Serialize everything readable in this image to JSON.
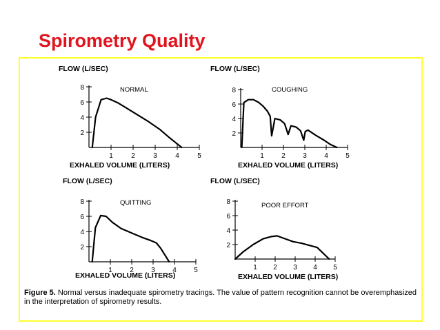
{
  "slide": {
    "title": "Spirometry Quality"
  },
  "figure": {
    "caption_label": "Figure 5.",
    "caption_text": "Normal versus inadequate spirometry tracings. The value of pattern recognition cannot be overemphasized in the interpretation of spirometry results."
  },
  "colors": {
    "title": "#e0141e",
    "frame": "#ffff2a",
    "ink": "#000000"
  },
  "chart_data": [
    {
      "type": "line",
      "title": "NORMAL",
      "xlabel": "EXHALED VOLUME (LITERS)",
      "ylabel": "FLOW (L/SEC)",
      "xlim": [
        0,
        5
      ],
      "ylim": [
        0,
        8
      ],
      "xticks": [
        1,
        2,
        3,
        4,
        5
      ],
      "yticks": [
        2,
        4,
        6,
        8
      ],
      "x": [
        0.15,
        0.3,
        0.55,
        0.8,
        1.0,
        1.3,
        1.7,
        2.2,
        2.7,
        3.2,
        3.6,
        3.9,
        4.2
      ],
      "y": [
        0,
        4.0,
        6.3,
        6.5,
        6.3,
        5.9,
        5.2,
        4.3,
        3.4,
        2.4,
        1.4,
        0.7,
        0
      ]
    },
    {
      "type": "line",
      "title": "COUGHING",
      "xlabel": "EXHALED VOLUME (LITERS)",
      "ylabel": "FLOW (L/SEC)",
      "xlim": [
        0,
        5
      ],
      "ylim": [
        0,
        8
      ],
      "xticks": [
        1,
        2,
        3,
        4,
        5
      ],
      "yticks": [
        2,
        4,
        6,
        8
      ],
      "x": [
        0.05,
        0.15,
        0.35,
        0.6,
        0.85,
        1.05,
        1.25,
        1.38,
        1.45,
        1.6,
        1.85,
        2.05,
        2.22,
        2.35,
        2.6,
        2.8,
        2.95,
        3.02,
        3.15,
        3.5,
        3.9,
        4.2,
        4.5
      ],
      "y": [
        0,
        6.2,
        6.6,
        6.6,
        6.2,
        5.7,
        5.0,
        4.3,
        1.6,
        4.0,
        3.8,
        3.3,
        1.8,
        3.0,
        2.8,
        2.3,
        1.0,
        2.2,
        2.4,
        1.7,
        1.0,
        0.4,
        0
      ]
    },
    {
      "type": "line",
      "title": "QUITTING",
      "xlabel": "EXHALED VOLUME (LITERS)",
      "ylabel": "FLOW (L/SEC)",
      "xlim": [
        0,
        5
      ],
      "ylim": [
        0,
        8
      ],
      "xticks": [
        1,
        2,
        3,
        4,
        5
      ],
      "yticks": [
        2,
        4,
        6,
        8
      ],
      "x": [
        0.15,
        0.3,
        0.55,
        0.8,
        1.1,
        1.5,
        2.0,
        2.5,
        2.9,
        3.15,
        3.35,
        3.55,
        3.75
      ],
      "y": [
        0,
        4.5,
        6.1,
        6.0,
        5.2,
        4.4,
        3.8,
        3.2,
        2.8,
        2.5,
        1.8,
        0.9,
        0
      ]
    },
    {
      "type": "line",
      "title": "POOR EFFORT",
      "xlabel": "EXHALED VOLUME (LITERS)",
      "ylabel": "FLOW (L/SEC)",
      "xlim": [
        0,
        5
      ],
      "ylim": [
        0,
        8
      ],
      "xticks": [
        1,
        2,
        3,
        4,
        5
      ],
      "yticks": [
        2,
        4,
        6,
        8
      ],
      "x": [
        0.0,
        0.4,
        0.9,
        1.4,
        1.8,
        2.1,
        2.5,
        2.9,
        3.3,
        3.7,
        4.1,
        4.4,
        4.7
      ],
      "y": [
        0,
        1.0,
        2.0,
        2.8,
        3.1,
        3.2,
        2.8,
        2.4,
        2.2,
        1.9,
        1.6,
        0.8,
        0
      ]
    }
  ]
}
